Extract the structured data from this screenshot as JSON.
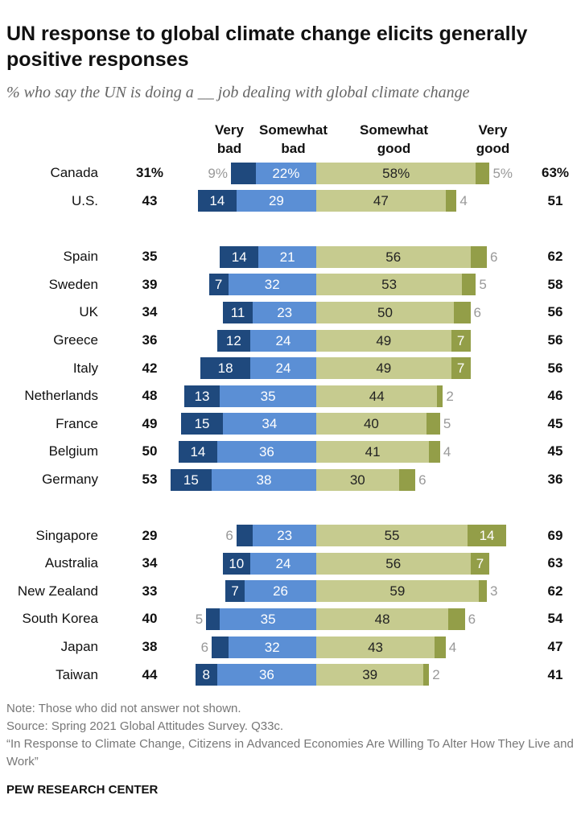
{
  "title": "UN response to global climate change elicits generally positive responses",
  "subtitle": "% who say the UN is doing a __ job dealing with global climate change",
  "footer": {
    "note": "Note: Those who did not answer not shown.",
    "source": "Source: Spring 2021 Global Attitudes Survey. Q33c.",
    "report": "“In Response to Climate Change, Citizens in Advanced Economies Are Willing To Alter How They Live and Work”",
    "brand": "PEW RESEARCH CENTER"
  },
  "chart_data": {
    "type": "bar",
    "orientation": "horizontal diverging stacked",
    "legend": {
      "very_bad": "Very bad",
      "somewhat_bad": "Somewhat bad",
      "somewhat_good": "Somewhat good",
      "very_good": "Very good"
    },
    "colors": {
      "very_bad": "#1f497d",
      "somewhat_bad": "#5b8fd5",
      "somewhat_good": "#c6cb8f",
      "very_good": "#939e48"
    },
    "groups": [
      [
        {
          "country": "Canada",
          "net_bad": "31%",
          "very_bad": 9,
          "somewhat_bad": 22,
          "somewhat_good": 58,
          "very_good": 5,
          "net_good": "63%",
          "percent_labels": true
        },
        {
          "country": "U.S.",
          "net_bad": "43",
          "very_bad": 14,
          "somewhat_bad": 29,
          "somewhat_good": 47,
          "very_good": 4,
          "net_good": "51"
        }
      ],
      [
        {
          "country": "Spain",
          "net_bad": "35",
          "very_bad": 14,
          "somewhat_bad": 21,
          "somewhat_good": 56,
          "very_good": 6,
          "net_good": "62"
        },
        {
          "country": "Sweden",
          "net_bad": "39",
          "very_bad": 7,
          "somewhat_bad": 32,
          "somewhat_good": 53,
          "very_good": 5,
          "net_good": "58"
        },
        {
          "country": "UK",
          "net_bad": "34",
          "very_bad": 11,
          "somewhat_bad": 23,
          "somewhat_good": 50,
          "very_good": 6,
          "net_good": "56"
        },
        {
          "country": "Greece",
          "net_bad": "36",
          "very_bad": 12,
          "somewhat_bad": 24,
          "somewhat_good": 49,
          "very_good": 7,
          "net_good": "56"
        },
        {
          "country": "Italy",
          "net_bad": "42",
          "very_bad": 18,
          "somewhat_bad": 24,
          "somewhat_good": 49,
          "very_good": 7,
          "net_good": "56"
        },
        {
          "country": "Netherlands",
          "net_bad": "48",
          "very_bad": 13,
          "somewhat_bad": 35,
          "somewhat_good": 44,
          "very_good": 2,
          "net_good": "46"
        },
        {
          "country": "France",
          "net_bad": "49",
          "very_bad": 15,
          "somewhat_bad": 34,
          "somewhat_good": 40,
          "very_good": 5,
          "net_good": "45"
        },
        {
          "country": "Belgium",
          "net_bad": "50",
          "very_bad": 14,
          "somewhat_bad": 36,
          "somewhat_good": 41,
          "very_good": 4,
          "net_good": "45"
        },
        {
          "country": "Germany",
          "net_bad": "53",
          "very_bad": 15,
          "somewhat_bad": 38,
          "somewhat_good": 30,
          "very_good": 6,
          "net_good": "36"
        }
      ],
      [
        {
          "country": "Singapore",
          "net_bad": "29",
          "very_bad": 6,
          "somewhat_bad": 23,
          "somewhat_good": 55,
          "very_good": 14,
          "net_good": "69"
        },
        {
          "country": "Australia",
          "net_bad": "34",
          "very_bad": 10,
          "somewhat_bad": 24,
          "somewhat_good": 56,
          "very_good": 7,
          "net_good": "63"
        },
        {
          "country": "New Zealand",
          "net_bad": "33",
          "very_bad": 7,
          "somewhat_bad": 26,
          "somewhat_good": 59,
          "very_good": 3,
          "net_good": "62"
        },
        {
          "country": "South Korea",
          "net_bad": "40",
          "very_bad": 5,
          "somewhat_bad": 35,
          "somewhat_good": 48,
          "very_good": 6,
          "net_good": "54"
        },
        {
          "country": "Japan",
          "net_bad": "38",
          "very_bad": 6,
          "somewhat_bad": 32,
          "somewhat_good": 43,
          "very_good": 4,
          "net_good": "47"
        },
        {
          "country": "Taiwan",
          "net_bad": "44",
          "very_bad": 8,
          "somewhat_bad": 36,
          "somewhat_good": 39,
          "very_good": 2,
          "net_good": "41"
        }
      ]
    ]
  }
}
